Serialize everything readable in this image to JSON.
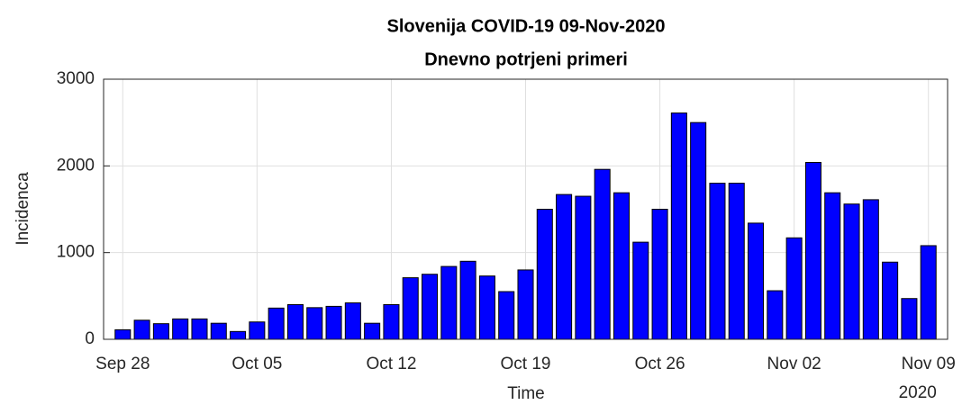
{
  "chart_data": {
    "type": "bar",
    "title": "Slovenija COVID-19 09-Nov-2020",
    "subtitle": "Dnevno potrjeni primeri",
    "x_label": "Time",
    "y_label": "Incidenca",
    "x": [
      "2020-09-28",
      "2020-09-29",
      "2020-09-30",
      "2020-10-01",
      "2020-10-02",
      "2020-10-03",
      "2020-10-04",
      "2020-10-05",
      "2020-10-06",
      "2020-10-07",
      "2020-10-08",
      "2020-10-09",
      "2020-10-10",
      "2020-10-11",
      "2020-10-12",
      "2020-10-13",
      "2020-10-14",
      "2020-10-15",
      "2020-10-16",
      "2020-10-17",
      "2020-10-18",
      "2020-10-19",
      "2020-10-20",
      "2020-10-21",
      "2020-10-22",
      "2020-10-23",
      "2020-10-24",
      "2020-10-25",
      "2020-10-26",
      "2020-10-27",
      "2020-10-28",
      "2020-10-29",
      "2020-10-30",
      "2020-10-31",
      "2020-11-01",
      "2020-11-02",
      "2020-11-03",
      "2020-11-04",
      "2020-11-05",
      "2020-11-06",
      "2020-11-07",
      "2020-11-08",
      "2020-11-09"
    ],
    "values": [
      110,
      220,
      180,
      235,
      235,
      185,
      90,
      200,
      360,
      400,
      365,
      380,
      420,
      185,
      400,
      710,
      750,
      840,
      900,
      730,
      550,
      800,
      1500,
      1670,
      1650,
      1960,
      1690,
      1120,
      1500,
      2610,
      2500,
      1800,
      1800,
      1340,
      560,
      1170,
      2040,
      1690,
      1560,
      1610,
      890,
      470,
      1080
    ],
    "color": "#0000ff",
    "edge_color": "#000000",
    "xlim": [
      "2020-09-27",
      "2020-11-10"
    ],
    "xticks": [
      {
        "value": "2020-09-28",
        "label": "Sep 28"
      },
      {
        "value": "2020-10-05",
        "label": "Oct 05"
      },
      {
        "value": "2020-10-12",
        "label": "Oct 12"
      },
      {
        "value": "2020-10-19",
        "label": "Oct 19"
      },
      {
        "value": "2020-10-26",
        "label": "Oct 26"
      },
      {
        "value": "2020-11-02",
        "label": "Nov 02"
      },
      {
        "value": "2020-11-09",
        "label": "Nov 09"
      }
    ],
    "x_year_label": "2020",
    "ylim": [
      0,
      3000
    ],
    "yticks": [
      0,
      1000,
      2000,
      3000
    ],
    "grid": true
  }
}
